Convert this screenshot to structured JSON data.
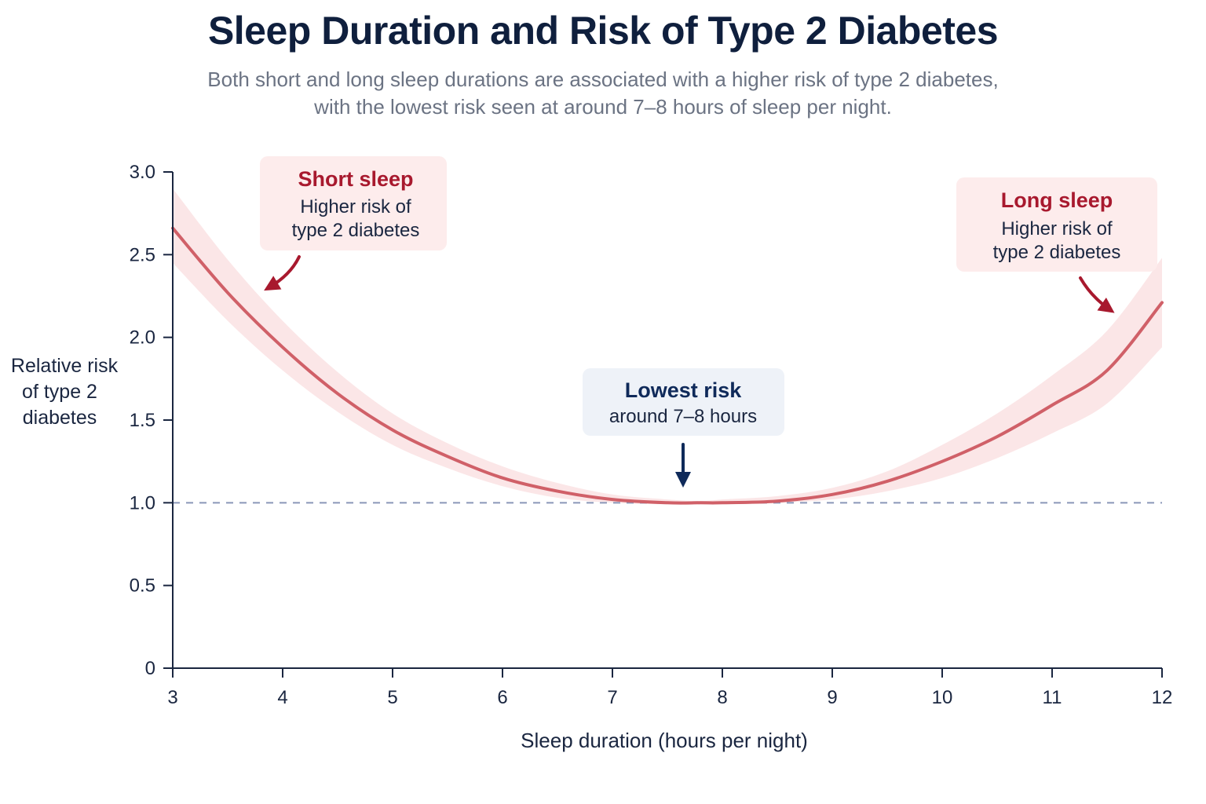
{
  "chart_data": {
    "type": "line",
    "title": "Sleep Duration and Risk of Type 2 Diabetes",
    "subtitle": [
      "Both short and long sleep durations are associated with a higher risk of type 2 diabetes,",
      "with the lowest risk seen at around 7–8 hours of sleep per night."
    ],
    "xlabel": "Sleep duration (hours per night)",
    "ylabel": [
      "Relative risk",
      "of type 2",
      "diabetes"
    ],
    "xlim": [
      3,
      12
    ],
    "ylim": [
      0,
      3.0
    ],
    "x_ticks": [
      "3",
      "4",
      "5",
      "6",
      "7",
      "8",
      "9",
      "10",
      "11",
      "12"
    ],
    "y_ticks": [
      "0",
      "0.5",
      "1.0",
      "1.5",
      "2.0",
      "2.5",
      "3.0"
    ],
    "reference_line": 1.0,
    "series": [
      {
        "x": [
          3,
          3.5,
          4,
          4.5,
          5,
          5.5,
          6,
          6.5,
          7,
          7.5,
          7.8,
          8,
          8.5,
          9,
          9.5,
          10,
          10.5,
          11,
          11.5,
          12
        ],
        "y": [
          2.66,
          2.27,
          1.94,
          1.66,
          1.44,
          1.28,
          1.15,
          1.07,
          1.02,
          1.0,
          1.0,
          1.0,
          1.01,
          1.05,
          1.13,
          1.25,
          1.4,
          1.59,
          1.8,
          2.21
        ],
        "ci_lower": [
          2.45,
          2.1,
          1.8,
          1.55,
          1.35,
          1.21,
          1.1,
          1.03,
          1.0,
          0.99,
          0.99,
          0.99,
          1.0,
          1.02,
          1.07,
          1.15,
          1.27,
          1.42,
          1.6,
          1.94
        ],
        "ci_upper": [
          2.9,
          2.47,
          2.1,
          1.79,
          1.54,
          1.36,
          1.22,
          1.12,
          1.05,
          1.02,
          1.01,
          1.02,
          1.04,
          1.09,
          1.19,
          1.35,
          1.54,
          1.77,
          2.04,
          2.48
        ]
      }
    ],
    "colors": {
      "line": "#d06068",
      "band": "#fbe3e4",
      "reference": "#8a97b8",
      "axis": "#1a2640",
      "arrow_red": "#a8192e",
      "arrow_navy": "#0f2a5a"
    },
    "annotations": [
      {
        "id": "short",
        "title": "Short sleep",
        "text": [
          "Higher risk of",
          "type 2 diabetes"
        ]
      },
      {
        "id": "lowest",
        "title": "Lowest risk",
        "text": [
          "around 7–8 hours"
        ]
      },
      {
        "id": "long",
        "title": "Long sleep",
        "text": [
          "Higher risk of",
          "type 2 diabetes"
        ]
      }
    ]
  }
}
